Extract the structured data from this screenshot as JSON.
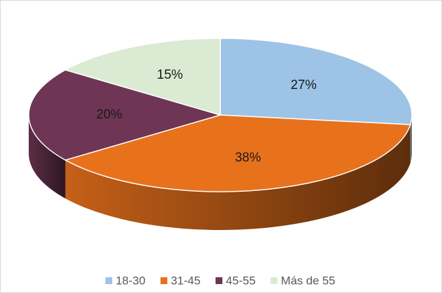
{
  "chart_data": {
    "type": "pie",
    "categories": [
      "18-30",
      "31-45",
      "45-55",
      "Más de 55"
    ],
    "values": [
      27,
      38,
      20,
      15
    ],
    "value_labels": [
      "27%",
      "38%",
      "20%",
      "15%"
    ],
    "colors": [
      "#9dc3e6",
      "#e8711c",
      "#6e3654",
      "#dbead2"
    ],
    "legend": "bottom"
  }
}
